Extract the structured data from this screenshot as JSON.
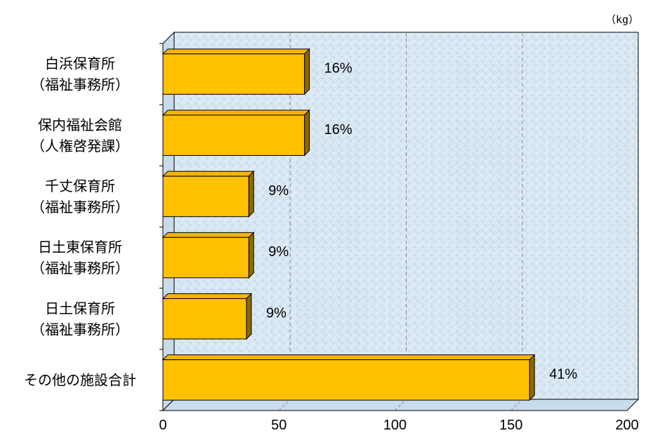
{
  "chart_data": {
    "type": "bar",
    "orientation": "horizontal",
    "style": "3d",
    "unit": "（kg）",
    "xlim": [
      0,
      200
    ],
    "x_ticks": [
      0,
      50,
      100,
      150,
      200
    ],
    "grid": "vertical-dashed",
    "categories": [
      [
        "白浜保育所",
        "（福祉事務所）"
      ],
      [
        "保内福祉会館",
        "（人権啓発課）"
      ],
      [
        "千丈保育所",
        "（福祉事務所）"
      ],
      [
        "日土東保育所",
        "（福祉事務所）"
      ],
      [
        "日土保育所",
        "（福祉事務所）"
      ],
      [
        "その他の施設合計"
      ]
    ],
    "values": [
      61,
      61,
      37,
      37,
      36,
      158
    ],
    "data_labels": [
      "16%",
      "16%",
      "9%",
      "9%",
      "9%",
      "41%"
    ],
    "colors": {
      "bar_front": "#FFC000",
      "bar_top": "#F4B400",
      "bar_side": "#8C6A00",
      "wall": "#D8E6F2",
      "floor": "#C8DCEE",
      "grid": "#8A8A8A"
    }
  }
}
